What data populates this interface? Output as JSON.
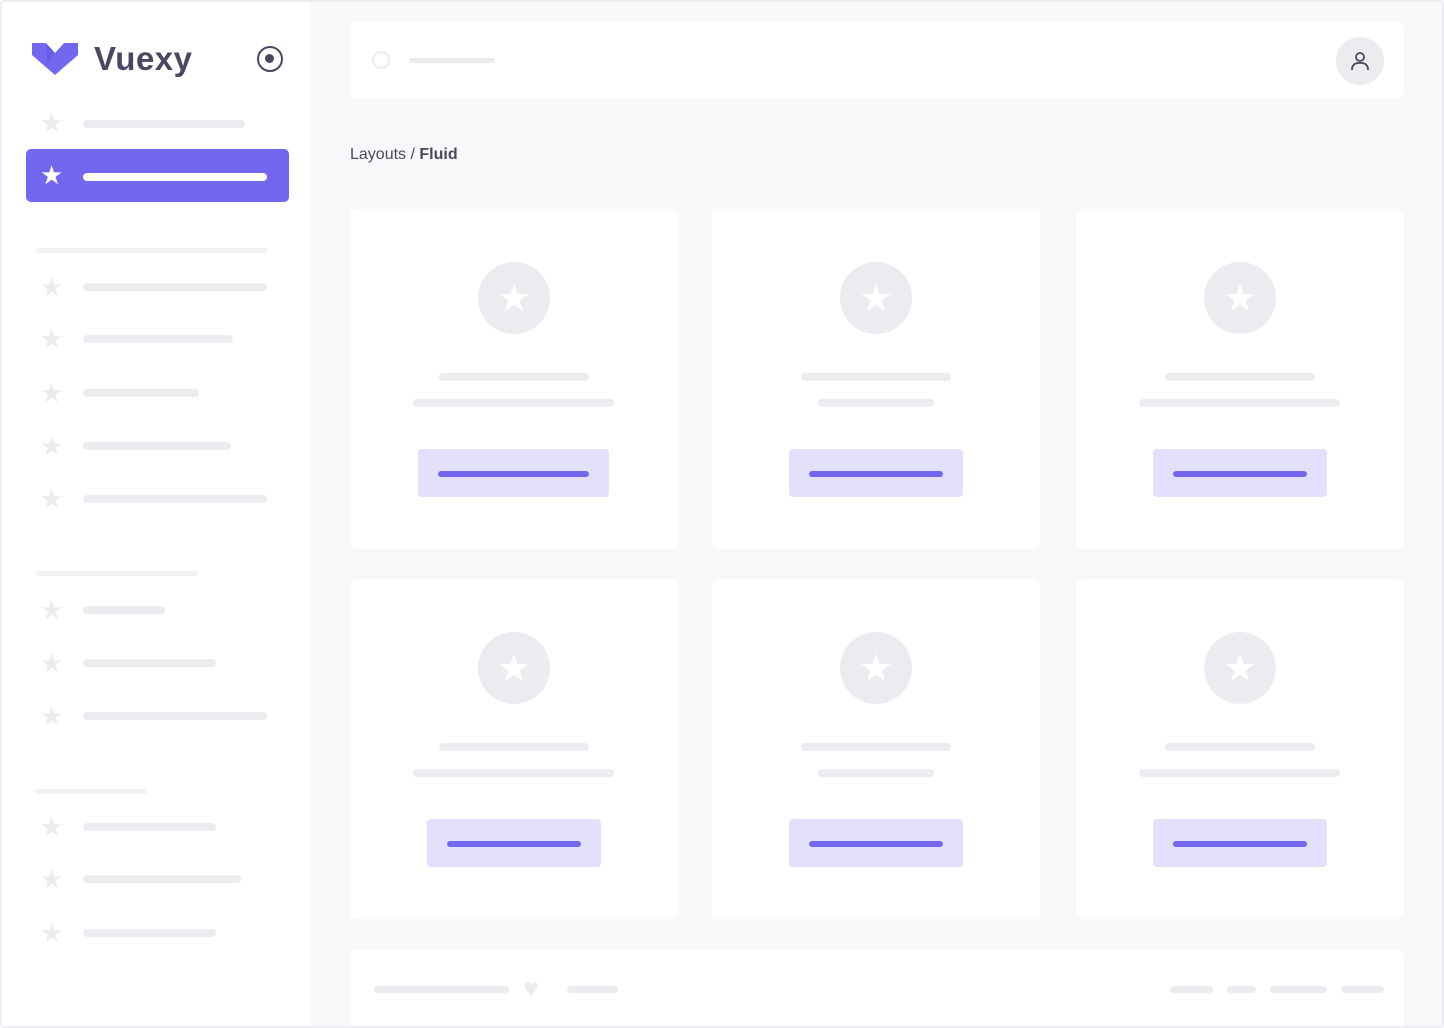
{
  "brand": {
    "name": "Vuexy",
    "logo_color": "#7367f0"
  },
  "breadcrumb": {
    "parent": "Layouts",
    "separator": " / ",
    "current": "Fluid"
  },
  "colors": {
    "accent": "#7367f0",
    "accent_light": "#e3e0fc",
    "skeleton": "#ebecf0",
    "background": "#f8f8fa"
  },
  "icons": {
    "pin": "radio-circle-icon",
    "nav": "star-icon",
    "search": "search-icon",
    "user": "user-icon",
    "footer": "heart-icon"
  }
}
